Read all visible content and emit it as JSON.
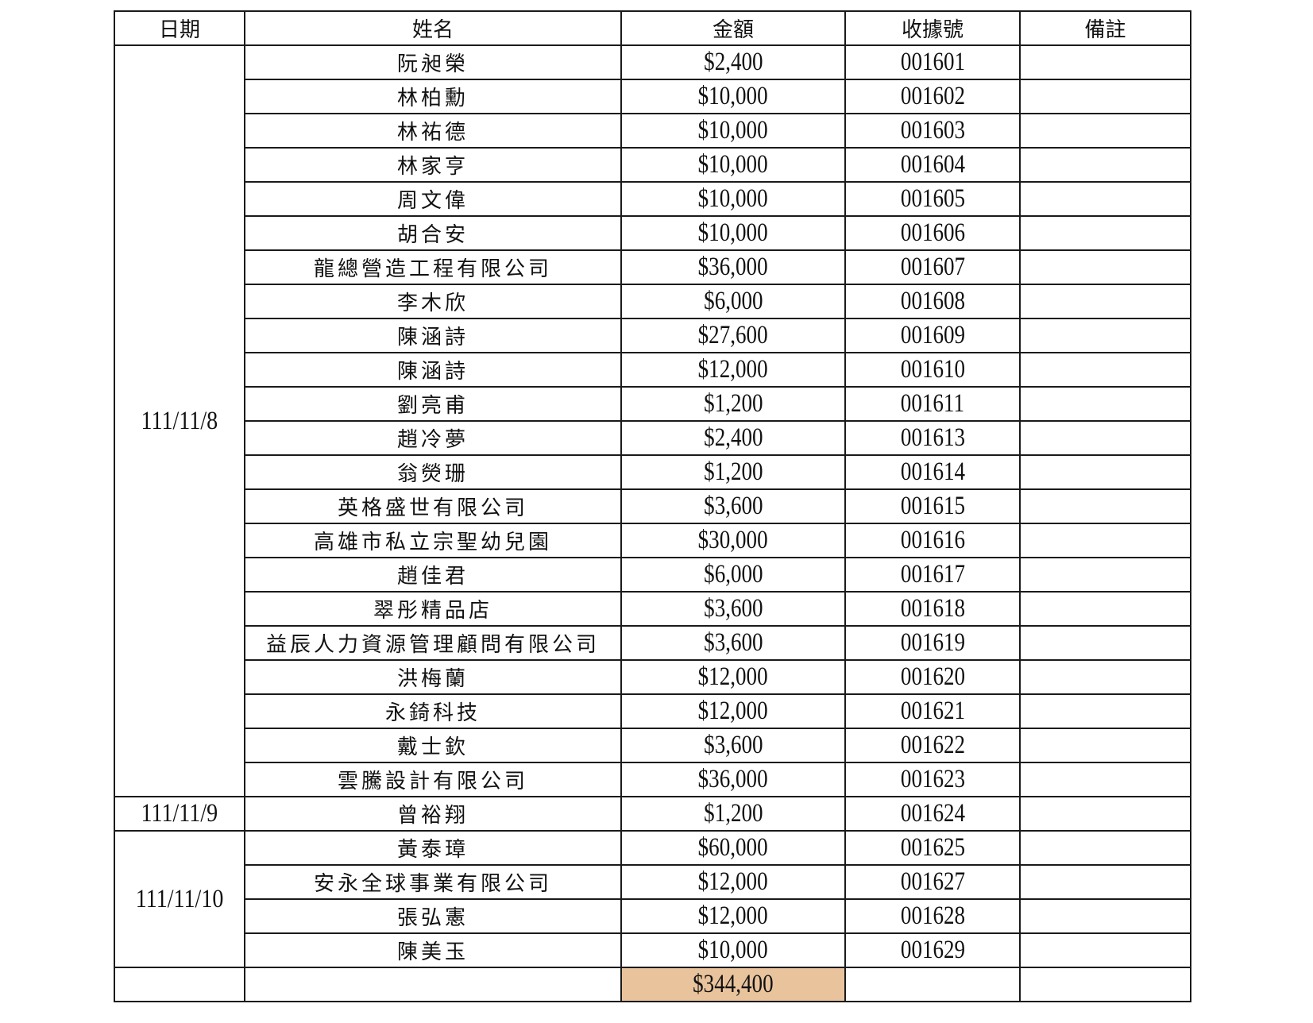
{
  "headers": {
    "date": "日期",
    "name": "姓名",
    "amount": "金額",
    "receipt": "收據號",
    "note": "備註"
  },
  "groups": [
    {
      "date": "111/11/8",
      "rows": [
        {
          "name": "阮昶榮",
          "amount": "$2,400",
          "receipt": "001601",
          "note": ""
        },
        {
          "name": "林柏勳",
          "amount": "$10,000",
          "receipt": "001602",
          "note": ""
        },
        {
          "name": "林祐德",
          "amount": "$10,000",
          "receipt": "001603",
          "note": ""
        },
        {
          "name": "林家亨",
          "amount": "$10,000",
          "receipt": "001604",
          "note": ""
        },
        {
          "name": "周文偉",
          "amount": "$10,000",
          "receipt": "001605",
          "note": ""
        },
        {
          "name": "胡合安",
          "amount": "$10,000",
          "receipt": "001606",
          "note": ""
        },
        {
          "name": "龍總營造工程有限公司",
          "amount": "$36,000",
          "receipt": "001607",
          "note": ""
        },
        {
          "name": "李木欣",
          "amount": "$6,000",
          "receipt": "001608",
          "note": ""
        },
        {
          "name": "陳涵詩",
          "amount": "$27,600",
          "receipt": "001609",
          "note": ""
        },
        {
          "name": "陳涵詩",
          "amount": "$12,000",
          "receipt": "001610",
          "note": ""
        },
        {
          "name": "劉亮甫",
          "amount": "$1,200",
          "receipt": "001611",
          "note": ""
        },
        {
          "name": "趙冷夢",
          "amount": "$2,400",
          "receipt": "001613",
          "note": ""
        },
        {
          "name": "翁熒珊",
          "amount": "$1,200",
          "receipt": "001614",
          "note": ""
        },
        {
          "name": "英格盛世有限公司",
          "amount": "$3,600",
          "receipt": "001615",
          "note": ""
        },
        {
          "name": "高雄市私立宗聖幼兒園",
          "amount": "$30,000",
          "receipt": "001616",
          "note": ""
        },
        {
          "name": "趙佳君",
          "amount": "$6,000",
          "receipt": "001617",
          "note": ""
        },
        {
          "name": "翠彤精品店",
          "amount": "$3,600",
          "receipt": "001618",
          "note": ""
        },
        {
          "name": "益辰人力資源管理顧問有限公司",
          "amount": "$3,600",
          "receipt": "001619",
          "note": ""
        },
        {
          "name": "洪梅蘭",
          "amount": "$12,000",
          "receipt": "001620",
          "note": ""
        },
        {
          "name": "永錡科技",
          "amount": "$12,000",
          "receipt": "001621",
          "note": ""
        },
        {
          "name": "戴士欽",
          "amount": "$3,600",
          "receipt": "001622",
          "note": ""
        },
        {
          "name": "雲騰設計有限公司",
          "amount": "$36,000",
          "receipt": "001623",
          "note": ""
        }
      ]
    },
    {
      "date": "111/11/9",
      "rows": [
        {
          "name": "曾裕翔",
          "amount": "$1,200",
          "receipt": "001624",
          "note": ""
        }
      ]
    },
    {
      "date": "111/11/10",
      "rows": [
        {
          "name": "黃泰璋",
          "amount": "$60,000",
          "receipt": "001625",
          "note": ""
        },
        {
          "name": "安永全球事業有限公司",
          "amount": "$12,000",
          "receipt": "001627",
          "note": ""
        },
        {
          "name": "張弘憲",
          "amount": "$12,000",
          "receipt": "001628",
          "note": ""
        },
        {
          "name": "陳美玉",
          "amount": "$10,000",
          "receipt": "001629",
          "note": ""
        }
      ]
    }
  ],
  "total": {
    "amount": "$344,400",
    "highlight_color": "#e8c39c"
  }
}
